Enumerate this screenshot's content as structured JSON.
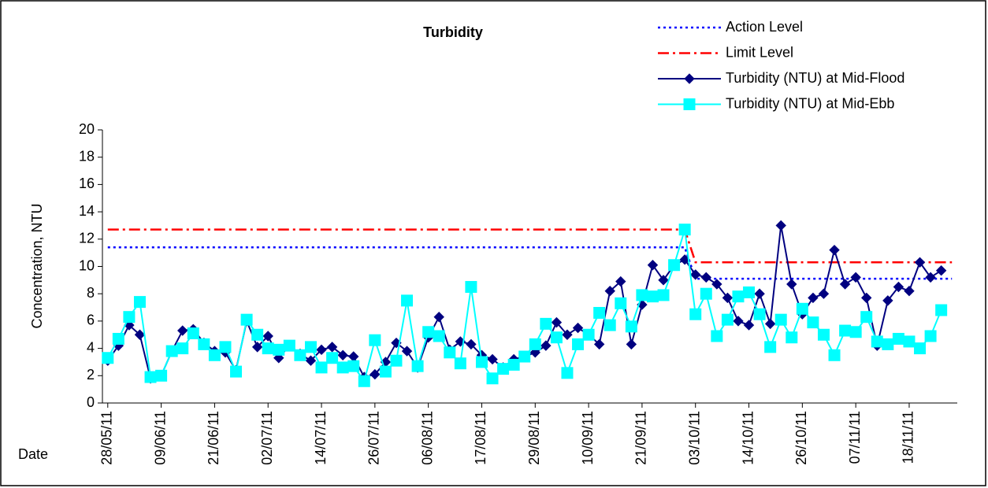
{
  "chart_data": {
    "type": "line",
    "title": "Turbidity",
    "y_label": "Concentration, NTU",
    "x_label": "Date",
    "categories": [
      "28/05/11",
      null,
      null,
      null,
      null,
      "09/06/11",
      null,
      null,
      null,
      null,
      "21/06/11",
      null,
      null,
      null,
      null,
      "02/07/11",
      null,
      null,
      null,
      null,
      "14/07/11",
      null,
      null,
      null,
      null,
      "26/07/11",
      null,
      null,
      null,
      null,
      "06/08/11",
      null,
      null,
      null,
      null,
      "17/08/11",
      null,
      null,
      null,
      null,
      "29/08/11",
      null,
      null,
      null,
      null,
      "10/09/11",
      null,
      null,
      null,
      null,
      "21/09/11",
      null,
      null,
      null,
      null,
      "03/10/11",
      null,
      null,
      null,
      null,
      "14/10/11",
      null,
      null,
      null,
      null,
      "26/10/11",
      null,
      null,
      null,
      null,
      "07/11/11",
      null,
      null,
      null,
      null,
      "18/11/11",
      null,
      null,
      null,
      null
    ],
    "ylim": [
      0,
      20
    ],
    "yticks": [
      0,
      2,
      4,
      6,
      8,
      10,
      12,
      14,
      16,
      18,
      20
    ],
    "legend": "top-right",
    "series": [
      {
        "name": "Action Level",
        "color": "#0000ff",
        "dash": "dotted",
        "marker": "none",
        "values": [
          11.4,
          11.4,
          11.4,
          11.4,
          11.4,
          11.4,
          11.4,
          11.4,
          11.4,
          11.4,
          11.4,
          11.4,
          11.4,
          11.4,
          11.4,
          11.4,
          11.4,
          11.4,
          11.4,
          11.4,
          11.4,
          11.4,
          11.4,
          11.4,
          11.4,
          11.4,
          11.4,
          11.4,
          11.4,
          11.4,
          11.4,
          11.4,
          11.4,
          11.4,
          11.4,
          11.4,
          11.4,
          11.4,
          11.4,
          11.4,
          11.4,
          11.4,
          11.4,
          11.4,
          11.4,
          11.4,
          11.4,
          11.4,
          11.4,
          11.4,
          11.4,
          11.4,
          11.4,
          11.4,
          11.4,
          9.1,
          9.1,
          9.1,
          9.1,
          9.1,
          9.1,
          9.1,
          9.1,
          9.1,
          9.1,
          9.1,
          9.1,
          9.1,
          9.1,
          9.1,
          9.1,
          9.1,
          9.1,
          9.1,
          9.1,
          9.1,
          9.1,
          9.1,
          9.1,
          9.1
        ]
      },
      {
        "name": "Limit Level",
        "color": "#ff0000",
        "dash": "dashdot",
        "marker": "none",
        "values": [
          12.7,
          12.7,
          12.7,
          12.7,
          12.7,
          12.7,
          12.7,
          12.7,
          12.7,
          12.7,
          12.7,
          12.7,
          12.7,
          12.7,
          12.7,
          12.7,
          12.7,
          12.7,
          12.7,
          12.7,
          12.7,
          12.7,
          12.7,
          12.7,
          12.7,
          12.7,
          12.7,
          12.7,
          12.7,
          12.7,
          12.7,
          12.7,
          12.7,
          12.7,
          12.7,
          12.7,
          12.7,
          12.7,
          12.7,
          12.7,
          12.7,
          12.7,
          12.7,
          12.7,
          12.7,
          12.7,
          12.7,
          12.7,
          12.7,
          12.7,
          12.7,
          12.7,
          12.7,
          12.7,
          12.7,
          10.3,
          10.3,
          10.3,
          10.3,
          10.3,
          10.3,
          10.3,
          10.3,
          10.3,
          10.3,
          10.3,
          10.3,
          10.3,
          10.3,
          10.3,
          10.3,
          10.3,
          10.3,
          10.3,
          10.3,
          10.3,
          10.3,
          10.3,
          10.3,
          10.3
        ]
      },
      {
        "name": "Turbidity (NTU) at Mid-Flood",
        "color": "#000080",
        "dash": "solid",
        "marker": "diamond",
        "values": [
          3.1,
          4.2,
          5.7,
          5.0,
          1.8,
          2.0,
          3.8,
          5.3,
          5.4,
          4.4,
          3.8,
          3.7,
          2.4,
          6.0,
          4.1,
          4.9,
          3.3,
          4.2,
          3.6,
          3.1,
          3.9,
          4.1,
          3.5,
          3.4,
          1.9,
          2.1,
          3.0,
          4.4,
          3.8,
          2.6,
          4.8,
          6.3,
          3.9,
          4.5,
          4.3,
          3.5,
          3.2,
          2.6,
          3.2,
          3.4,
          3.7,
          4.2,
          5.9,
          5.0,
          5.5,
          5.0,
          4.3,
          8.2,
          8.9,
          4.3,
          7.2,
          10.1,
          9.0,
          10.1,
          10.5,
          9.4,
          9.2,
          8.7,
          7.7,
          6.0,
          5.7,
          8.0,
          5.8,
          13.0,
          8.7,
          6.5,
          7.7,
          8.0,
          11.2,
          8.7,
          9.2,
          7.7,
          4.2,
          7.5,
          8.5,
          8.2,
          10.3,
          9.2,
          9.7,
          null
        ]
      },
      {
        "name": "Turbidity (NTU) at Mid-Ebb",
        "color": "#00ffff",
        "dash": "solid",
        "marker": "square",
        "values": [
          3.3,
          4.7,
          6.3,
          7.4,
          1.9,
          2.0,
          3.8,
          4.0,
          5.1,
          4.3,
          3.5,
          4.1,
          2.3,
          6.1,
          5.0,
          4.0,
          3.9,
          4.2,
          3.5,
          4.1,
          2.6,
          3.3,
          2.6,
          2.7,
          1.6,
          4.6,
          2.3,
          3.1,
          7.5,
          2.7,
          5.2,
          4.9,
          3.7,
          2.9,
          8.5,
          3.0,
          1.8,
          2.5,
          2.8,
          3.4,
          4.3,
          5.8,
          4.8,
          2.2,
          4.3,
          5.0,
          6.6,
          5.7,
          7.3,
          5.6,
          7.9,
          7.8,
          7.9,
          10.1,
          12.7,
          6.5,
          8.0,
          4.9,
          6.1,
          7.8,
          8.1,
          6.5,
          4.1,
          6.1,
          4.8,
          6.9,
          5.9,
          5.0,
          3.5,
          5.3,
          5.2,
          6.3,
          4.5,
          4.3,
          4.7,
          4.5,
          4.0,
          4.9,
          6.8,
          null
        ]
      }
    ]
  }
}
